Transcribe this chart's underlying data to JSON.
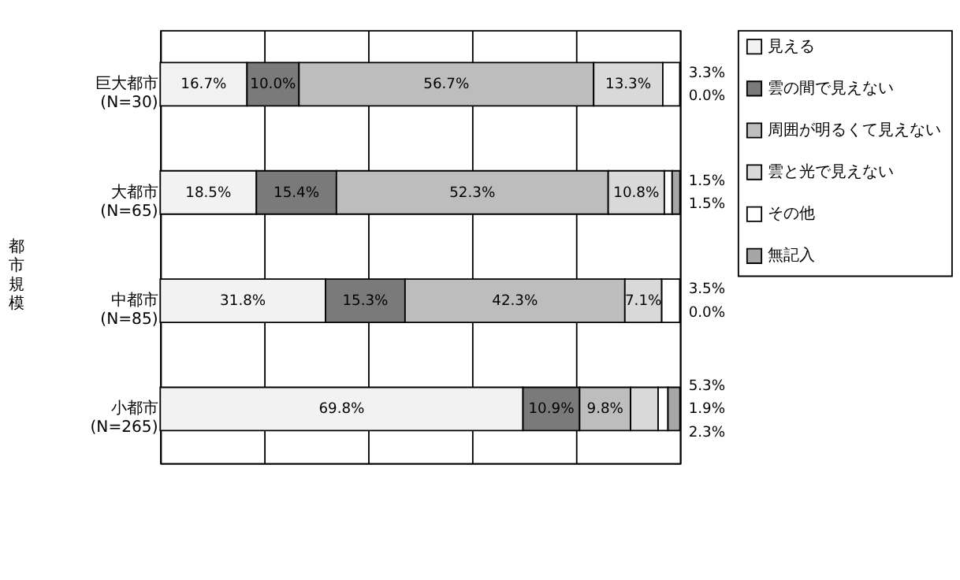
{
  "chart_data": {
    "type": "bar",
    "orientation": "horizontal",
    "stacked": true,
    "ylabel": "都市規模",
    "categories": [
      "巨大都市\n(N=30)",
      "大都市\n(N=65)",
      "中都市\n(N=85)",
      "小都市\n(N=265)"
    ],
    "xlim": [
      0,
      100
    ],
    "xticks": [
      {
        "value": 0,
        "label": null
      },
      {
        "value": 20,
        "label": null
      },
      {
        "value": 40,
        "label": null
      },
      {
        "value": 60,
        "label": null
      },
      {
        "value": 80,
        "label": null
      },
      {
        "value": 100,
        "label": null
      }
    ],
    "grid": "x",
    "legend": "top right",
    "series": [
      {
        "name": "見える",
        "color": "#f2f2f2",
        "values": [
          16.7,
          18.5,
          31.8,
          69.8
        ],
        "value_labels": [
          "16.7%",
          "18.5%",
          "31.8%",
          "69.8%"
        ]
      },
      {
        "name": "雲の間で見えない",
        "color": "#7a7a7a",
        "values": [
          10.0,
          15.4,
          15.3,
          10.9
        ],
        "value_labels": [
          "10.0%",
          "15.4%",
          "15.3%",
          "10.9%"
        ]
      },
      {
        "name": "周囲が明るくて見えない",
        "color": "#bdbdbd",
        "values": [
          56.7,
          52.3,
          42.3,
          9.8
        ],
        "value_labels": [
          "56.7%",
          "52.3%",
          "42.3%",
          "9.8%"
        ]
      },
      {
        "name": "雲と光で見えない",
        "color": "#d9d9d9",
        "values": [
          13.3,
          10.8,
          7.1,
          5.3
        ],
        "value_labels": [
          "13.3%",
          "10.8%",
          "7.1%",
          "5.3%"
        ]
      },
      {
        "name": "その他",
        "color": "#ffffff",
        "values": [
          3.3,
          1.5,
          3.5,
          1.9
        ],
        "value_labels": [
          "3.3%",
          "1.5%",
          "3.5%",
          "1.9%"
        ]
      },
      {
        "name": "無記入",
        "color": "#a6a6a6",
        "values": [
          0.0,
          1.5,
          0.0,
          2.3
        ],
        "value_labels": [
          "0.0%",
          "1.5%",
          "0.0%",
          "2.3%"
        ]
      }
    ]
  }
}
